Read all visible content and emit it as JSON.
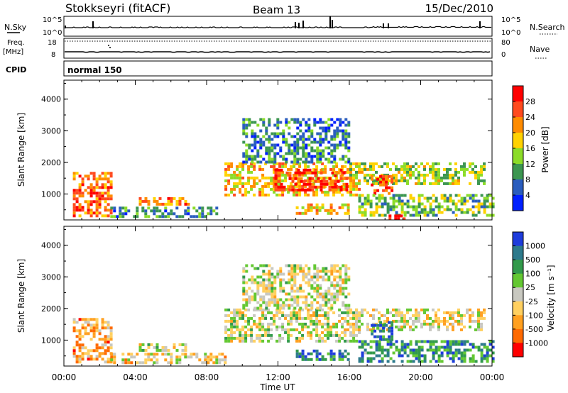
{
  "header": {
    "station": "Stokkseyri (fitACF)",
    "beam": "Beam 13",
    "date": "15/Dec/2010"
  },
  "noise_panel": {
    "left_label": "N.Sky",
    "right_label": "N.Search",
    "left_ticks": [
      "10^5",
      "10^0"
    ],
    "right_ticks": [
      "10^5",
      "10^0"
    ]
  },
  "freq_panel": {
    "left_label": "Freq.",
    "left_unit": "[MHz]",
    "left_ticks": [
      "18",
      "8"
    ],
    "right_label": "Nave",
    "right_ticks": [
      "80",
      "0"
    ]
  },
  "cpid": {
    "label": "CPID",
    "value": "normal 150"
  },
  "time_axis": {
    "ticks": [
      "00:00",
      "04:00",
      "08:00",
      "12:00",
      "16:00",
      "20:00",
      "00:00"
    ],
    "label": "Time UT"
  },
  "chart_data": [
    {
      "type": "heatmap",
      "name": "power",
      "ylabel": "Slant Range [km]",
      "yticks": [
        "1000",
        "2000",
        "3000",
        "4000"
      ],
      "ylim": [
        180,
        4600
      ],
      "xlim_hours": [
        0,
        24
      ],
      "colorbar_label": "Power [dB]",
      "colorbar_ticks": [
        "28",
        "24",
        "20",
        "16",
        "12",
        "8",
        "4"
      ],
      "colorbar_colors": [
        "#ff0000",
        "#ff4a1e",
        "#ff8c00",
        "#ffd200",
        "#8cdc28",
        "#3c9650",
        "#2a5dbe",
        "#0020ff"
      ],
      "regions": [
        {
          "t0": 0.5,
          "t1": 2.6,
          "r0": 300,
          "r1": 1700,
          "level": 0.75
        },
        {
          "t0": 2.6,
          "t1": 8.6,
          "r0": 300,
          "r1": 600,
          "level": 0.3
        },
        {
          "t0": 4.2,
          "t1": 7.0,
          "r0": 700,
          "r1": 900,
          "level": 0.7
        },
        {
          "t0": 9.0,
          "t1": 16.6,
          "r0": 1000,
          "r1": 2000,
          "level": 0.6
        },
        {
          "t0": 11.8,
          "t1": 15.8,
          "r0": 1100,
          "r1": 1800,
          "level": 0.85
        },
        {
          "t0": 10.0,
          "t1": 16.0,
          "r0": 2000,
          "r1": 3400,
          "level": 0.25
        },
        {
          "t0": 13.0,
          "t1": 16.0,
          "r0": 400,
          "r1": 700,
          "level": 0.6
        },
        {
          "t0": 16.0,
          "t1": 23.6,
          "r0": 1300,
          "r1": 2000,
          "level": 0.45
        },
        {
          "t0": 17.2,
          "t1": 18.4,
          "r0": 1000,
          "r1": 1600,
          "level": 0.8
        },
        {
          "t0": 16.5,
          "t1": 24.0,
          "r0": 300,
          "r1": 1000,
          "level": 0.4
        },
        {
          "t0": 18.2,
          "t1": 19.0,
          "r0": 200,
          "r1": 350,
          "level": 0.95
        }
      ]
    },
    {
      "type": "heatmap",
      "name": "velocity",
      "ylabel": "Slant Range [km]",
      "yticks": [
        "1000",
        "2000",
        "3000",
        "4000"
      ],
      "ylim": [
        180,
        4600
      ],
      "xlim_hours": [
        0,
        24
      ],
      "colorbar_label": "Velocity [m s⁻¹]",
      "colorbar_ticks": [
        "1000",
        "500",
        "100",
        "25",
        "-25",
        "-100",
        "-500",
        "-1000"
      ],
      "colorbar_colors": [
        "#1e3cdc",
        "#2d7a8c",
        "#329a4b",
        "#64c832",
        "#c8c8c0",
        "#ffd060",
        "#ffa020",
        "#ff6a00",
        "#ff0000"
      ],
      "regions": [
        {
          "t0": 0.5,
          "t1": 2.6,
          "r0": 300,
          "r1": 1700,
          "level": 0.3
        },
        {
          "t0": 2.6,
          "t1": 9.0,
          "r0": 250,
          "r1": 600,
          "level": 0.4
        },
        {
          "t0": 4.2,
          "t1": 7.0,
          "r0": 700,
          "r1": 900,
          "level": 0.5
        },
        {
          "t0": 9.0,
          "t1": 16.6,
          "r0": 1000,
          "r1": 2000,
          "level": 0.5
        },
        {
          "t0": 10.0,
          "t1": 16.0,
          "r0": 2000,
          "r1": 3400,
          "level": 0.5
        },
        {
          "t0": 13.0,
          "t1": 16.0,
          "r0": 400,
          "r1": 700,
          "level": 0.8
        },
        {
          "t0": 16.0,
          "t1": 23.6,
          "r0": 1300,
          "r1": 2000,
          "level": 0.45
        },
        {
          "t0": 17.2,
          "t1": 18.4,
          "r0": 1000,
          "r1": 1600,
          "level": 0.8
        },
        {
          "t0": 16.5,
          "t1": 24.0,
          "r0": 300,
          "r1": 1000,
          "level": 0.75
        }
      ]
    }
  ]
}
